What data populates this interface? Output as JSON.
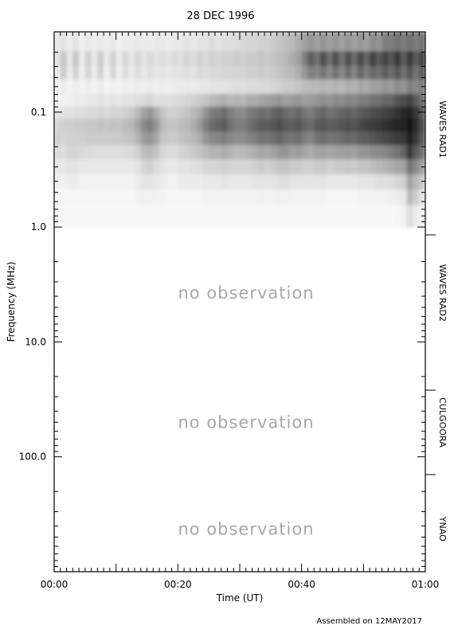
{
  "chart_data": {
    "type": "heatmap",
    "title": "28 DEC 1996",
    "xlabel": "Time (UT)",
    "ylabel": "Frequency (MHz)",
    "x_unit": "minutes after 00:00 UT",
    "xlim": [
      0,
      60
    ],
    "x_ticks": [
      {
        "value": 0,
        "label": "00:00"
      },
      {
        "value": 20,
        "label": "00:20"
      },
      {
        "value": 40,
        "label": "00:40"
      },
      {
        "value": 60,
        "label": "01:00"
      }
    ],
    "y_scale": "log",
    "y_inverted": true,
    "ylim_mhz": [
      0.02,
      1000
    ],
    "y_ticks": [
      {
        "value": 0.1,
        "label": "0.1"
      },
      {
        "value": 1.0,
        "label": "1.0"
      },
      {
        "value": 10.0,
        "label": "10.0"
      },
      {
        "value": 100.0,
        "label": "100.0"
      }
    ],
    "instrument_bands": [
      {
        "name": "WAVES RAD1",
        "range_mhz": [
          0.02,
          1.0
        ],
        "observed": true
      },
      {
        "name": "WAVES RAD2",
        "range_mhz": [
          1.0,
          14.0
        ],
        "observed": false,
        "label": "no observation"
      },
      {
        "name": "CULGOORA",
        "range_mhz": [
          14.0,
          180.0
        ],
        "observed": false,
        "label": "no observation"
      },
      {
        "name": "YNAO",
        "range_mhz": [
          180.0,
          1000.0
        ],
        "observed": false,
        "label": "no observation"
      }
    ],
    "spectrogram": {
      "description": "Intensity in WAVES RAD1 band; darker = more intense",
      "x_bins": 60,
      "freq_bins_mhz": [
        0.025,
        0.035,
        0.045,
        0.06,
        0.08,
        0.1,
        0.13,
        0.17,
        0.22,
        0.3,
        0.4,
        0.55,
        0.75
      ],
      "intensity_rows": [
        [
          0.1,
          0.12,
          0.08,
          0.12,
          0.06,
          0.1,
          0.08,
          0.1,
          0.07,
          0.1,
          0.06,
          0.08,
          0.08,
          0.1,
          0.08,
          0.08,
          0.1,
          0.1,
          0.08,
          0.1,
          0.1,
          0.12,
          0.1,
          0.12,
          0.12,
          0.14,
          0.12,
          0.14,
          0.14,
          0.15,
          0.16,
          0.18,
          0.18,
          0.2,
          0.2,
          0.22,
          0.25,
          0.28,
          0.3,
          0.35,
          0.4,
          0.45,
          0.4,
          0.45,
          0.4,
          0.45,
          0.4,
          0.45,
          0.4,
          0.45,
          0.4,
          0.5,
          0.45,
          0.55,
          0.55,
          0.6,
          0.55,
          0.6,
          0.55,
          0.6
        ],
        [
          0.12,
          0.25,
          0.1,
          0.25,
          0.08,
          0.2,
          0.1,
          0.22,
          0.08,
          0.2,
          0.08,
          0.18,
          0.1,
          0.18,
          0.12,
          0.16,
          0.12,
          0.15,
          0.12,
          0.15,
          0.14,
          0.18,
          0.14,
          0.2,
          0.16,
          0.2,
          0.18,
          0.2,
          0.2,
          0.22,
          0.2,
          0.22,
          0.22,
          0.25,
          0.22,
          0.25,
          0.28,
          0.3,
          0.35,
          0.4,
          0.55,
          0.7,
          0.6,
          0.75,
          0.6,
          0.75,
          0.6,
          0.75,
          0.62,
          0.78,
          0.65,
          0.8,
          0.7,
          0.8,
          0.72,
          0.85,
          0.7,
          0.85,
          0.7,
          0.8
        ],
        [
          0.08,
          0.22,
          0.08,
          0.2,
          0.06,
          0.18,
          0.08,
          0.2,
          0.06,
          0.18,
          0.06,
          0.15,
          0.08,
          0.15,
          0.1,
          0.14,
          0.1,
          0.12,
          0.1,
          0.12,
          0.12,
          0.14,
          0.12,
          0.16,
          0.14,
          0.16,
          0.16,
          0.18,
          0.18,
          0.18,
          0.18,
          0.2,
          0.2,
          0.22,
          0.2,
          0.22,
          0.25,
          0.28,
          0.3,
          0.35,
          0.45,
          0.55,
          0.5,
          0.6,
          0.5,
          0.6,
          0.5,
          0.62,
          0.52,
          0.65,
          0.55,
          0.65,
          0.6,
          0.7,
          0.62,
          0.72,
          0.6,
          0.72,
          0.6,
          0.7
        ],
        [
          0.05,
          0.08,
          0.05,
          0.08,
          0.05,
          0.08,
          0.05,
          0.08,
          0.05,
          0.07,
          0.05,
          0.07,
          0.06,
          0.08,
          0.07,
          0.08,
          0.07,
          0.08,
          0.07,
          0.08,
          0.08,
          0.1,
          0.09,
          0.1,
          0.1,
          0.12,
          0.12,
          0.12,
          0.13,
          0.14,
          0.14,
          0.15,
          0.15,
          0.16,
          0.16,
          0.18,
          0.2,
          0.22,
          0.22,
          0.25,
          0.28,
          0.3,
          0.3,
          0.32,
          0.3,
          0.32,
          0.3,
          0.35,
          0.32,
          0.38,
          0.35,
          0.4,
          0.4,
          0.45,
          0.42,
          0.5,
          0.45,
          0.55,
          0.5,
          0.55
        ],
        [
          0.05,
          0.06,
          0.06,
          0.08,
          0.08,
          0.1,
          0.1,
          0.12,
          0.1,
          0.12,
          0.1,
          0.12,
          0.12,
          0.14,
          0.16,
          0.18,
          0.14,
          0.14,
          0.14,
          0.15,
          0.16,
          0.18,
          0.2,
          0.22,
          0.25,
          0.3,
          0.32,
          0.35,
          0.3,
          0.32,
          0.3,
          0.35,
          0.35,
          0.38,
          0.4,
          0.42,
          0.45,
          0.4,
          0.42,
          0.45,
          0.4,
          0.42,
          0.45,
          0.48,
          0.45,
          0.5,
          0.48,
          0.52,
          0.5,
          0.55,
          0.55,
          0.6,
          0.6,
          0.65,
          0.65,
          0.72,
          0.75,
          0.8,
          0.7,
          0.6
        ],
        [
          0.1,
          0.12,
          0.12,
          0.14,
          0.14,
          0.16,
          0.16,
          0.18,
          0.16,
          0.18,
          0.18,
          0.2,
          0.22,
          0.3,
          0.4,
          0.45,
          0.35,
          0.25,
          0.2,
          0.2,
          0.22,
          0.25,
          0.3,
          0.35,
          0.45,
          0.55,
          0.58,
          0.62,
          0.55,
          0.5,
          0.48,
          0.55,
          0.58,
          0.62,
          0.6,
          0.65,
          0.68,
          0.62,
          0.6,
          0.65,
          0.58,
          0.55,
          0.62,
          0.65,
          0.6,
          0.62,
          0.65,
          0.68,
          0.65,
          0.7,
          0.72,
          0.75,
          0.78,
          0.8,
          0.82,
          0.88,
          0.92,
          0.95,
          0.85,
          0.7
        ],
        [
          0.18,
          0.2,
          0.2,
          0.22,
          0.22,
          0.24,
          0.24,
          0.26,
          0.24,
          0.26,
          0.25,
          0.28,
          0.3,
          0.38,
          0.5,
          0.55,
          0.45,
          0.3,
          0.25,
          0.25,
          0.28,
          0.3,
          0.35,
          0.42,
          0.55,
          0.62,
          0.65,
          0.7,
          0.6,
          0.55,
          0.55,
          0.6,
          0.65,
          0.7,
          0.68,
          0.72,
          0.75,
          0.7,
          0.68,
          0.72,
          0.65,
          0.62,
          0.7,
          0.72,
          0.68,
          0.7,
          0.72,
          0.75,
          0.72,
          0.78,
          0.8,
          0.82,
          0.85,
          0.88,
          0.9,
          0.92,
          0.95,
          0.98,
          0.9,
          0.75
        ],
        [
          0.2,
          0.18,
          0.2,
          0.2,
          0.2,
          0.22,
          0.22,
          0.22,
          0.22,
          0.22,
          0.22,
          0.24,
          0.26,
          0.32,
          0.42,
          0.45,
          0.38,
          0.25,
          0.22,
          0.22,
          0.25,
          0.28,
          0.3,
          0.35,
          0.45,
          0.5,
          0.52,
          0.55,
          0.5,
          0.48,
          0.48,
          0.52,
          0.55,
          0.6,
          0.58,
          0.62,
          0.65,
          0.6,
          0.58,
          0.62,
          0.55,
          0.52,
          0.6,
          0.62,
          0.58,
          0.6,
          0.62,
          0.65,
          0.62,
          0.68,
          0.7,
          0.72,
          0.75,
          0.78,
          0.8,
          0.82,
          0.85,
          0.95,
          0.85,
          0.7
        ],
        [
          0.15,
          0.14,
          0.18,
          0.18,
          0.16,
          0.15,
          0.14,
          0.14,
          0.14,
          0.14,
          0.14,
          0.15,
          0.16,
          0.2,
          0.28,
          0.3,
          0.25,
          0.18,
          0.15,
          0.15,
          0.18,
          0.2,
          0.22,
          0.25,
          0.3,
          0.32,
          0.32,
          0.35,
          0.32,
          0.3,
          0.3,
          0.32,
          0.35,
          0.38,
          0.36,
          0.4,
          0.45,
          0.45,
          0.4,
          0.42,
          0.38,
          0.35,
          0.4,
          0.4,
          0.38,
          0.4,
          0.4,
          0.42,
          0.4,
          0.45,
          0.45,
          0.48,
          0.5,
          0.52,
          0.55,
          0.6,
          0.65,
          0.85,
          0.7,
          0.6
        ],
        [
          0.1,
          0.1,
          0.12,
          0.12,
          0.1,
          0.1,
          0.1,
          0.1,
          0.1,
          0.1,
          0.1,
          0.1,
          0.1,
          0.12,
          0.18,
          0.2,
          0.15,
          0.12,
          0.1,
          0.1,
          0.12,
          0.12,
          0.14,
          0.15,
          0.18,
          0.18,
          0.18,
          0.2,
          0.18,
          0.18,
          0.18,
          0.18,
          0.2,
          0.22,
          0.2,
          0.22,
          0.25,
          0.25,
          0.22,
          0.22,
          0.2,
          0.2,
          0.22,
          0.22,
          0.2,
          0.22,
          0.22,
          0.24,
          0.22,
          0.25,
          0.25,
          0.28,
          0.3,
          0.32,
          0.35,
          0.38,
          0.4,
          0.6,
          0.5,
          0.4
        ],
        [
          0.06,
          0.06,
          0.08,
          0.08,
          0.06,
          0.06,
          0.06,
          0.06,
          0.06,
          0.06,
          0.06,
          0.06,
          0.06,
          0.08,
          0.12,
          0.12,
          0.1,
          0.08,
          0.06,
          0.06,
          0.08,
          0.08,
          0.08,
          0.08,
          0.1,
          0.1,
          0.1,
          0.12,
          0.1,
          0.1,
          0.1,
          0.1,
          0.12,
          0.12,
          0.12,
          0.12,
          0.14,
          0.14,
          0.12,
          0.12,
          0.12,
          0.12,
          0.12,
          0.12,
          0.1,
          0.1,
          0.1,
          0.1,
          0.1,
          0.12,
          0.12,
          0.12,
          0.14,
          0.14,
          0.15,
          0.18,
          0.2,
          0.4,
          0.3,
          0.22
        ],
        [
          0.04,
          0.04,
          0.04,
          0.04,
          0.04,
          0.04,
          0.04,
          0.04,
          0.04,
          0.04,
          0.04,
          0.04,
          0.04,
          0.05,
          0.06,
          0.06,
          0.05,
          0.05,
          0.04,
          0.04,
          0.04,
          0.04,
          0.04,
          0.04,
          0.05,
          0.05,
          0.05,
          0.05,
          0.05,
          0.05,
          0.05,
          0.05,
          0.05,
          0.06,
          0.05,
          0.05,
          0.06,
          0.06,
          0.05,
          0.05,
          0.05,
          0.05,
          0.05,
          0.05,
          0.04,
          0.04,
          0.04,
          0.04,
          0.04,
          0.05,
          0.05,
          0.05,
          0.05,
          0.05,
          0.06,
          0.08,
          0.1,
          0.3,
          0.2,
          0.12
        ],
        [
          0.03,
          0.03,
          0.03,
          0.03,
          0.03,
          0.03,
          0.03,
          0.03,
          0.03,
          0.03,
          0.03,
          0.03,
          0.03,
          0.03,
          0.03,
          0.03,
          0.03,
          0.03,
          0.03,
          0.03,
          0.03,
          0.03,
          0.03,
          0.03,
          0.03,
          0.03,
          0.03,
          0.03,
          0.03,
          0.03,
          0.03,
          0.03,
          0.03,
          0.03,
          0.03,
          0.03,
          0.03,
          0.03,
          0.03,
          0.03,
          0.03,
          0.03,
          0.03,
          0.03,
          0.03,
          0.03,
          0.03,
          0.03,
          0.03,
          0.03,
          0.03,
          0.03,
          0.03,
          0.03,
          0.03,
          0.04,
          0.05,
          0.15,
          0.08,
          0.05
        ]
      ]
    }
  },
  "footer": {
    "assembled_text": "Assembled on 12MAY2017"
  }
}
